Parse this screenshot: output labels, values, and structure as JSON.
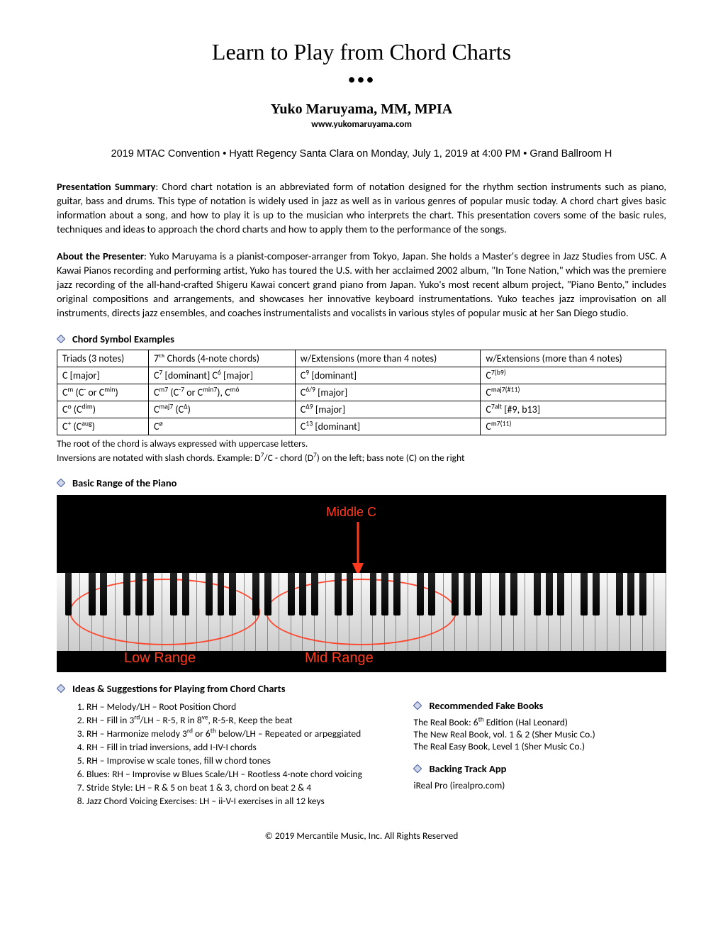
{
  "title": "Learn to Play from Chord Charts",
  "dots": "•••",
  "author": "Yuko Maruyama, MM, MPIA",
  "website": "www.yukomaruyama.com",
  "event": "2019 MTAC Convention  •  Hyatt Regency Santa Clara on Monday, July 1, 2019 at 4:00 PM  •  Grand Ballroom H",
  "summary_label": "Presentation Summary",
  "summary": ": Chord chart notation is an abbreviated form of notation designed for the rhythm section instruments such as piano, guitar, bass and drums. This type of notation is widely used in jazz as well as in various genres of popular music today. A chord chart gives basic information about a song, and how to play it is up to the musician who interprets the chart. This presentation covers some of the basic rules, techniques and ideas to approach the chord charts and how to apply them to the performance of the songs.",
  "about_label": "About the Presenter",
  "about": ": Yuko Maruyama is a pianist-composer-arranger from Tokyo, Japan. She holds a Master's degree in Jazz Studies from USC. A Kawai Pianos recording and performing artist, Yuko has toured the U.S. with her acclaimed 2002 album, \"In Tone Nation,\" which was the premiere jazz recording of the all-hand-crafted Shigeru Kawai concert grand piano from Japan. Yuko's most recent album project, \"Piano Bento,\" includes original compositions and arrangements, and showcases her innovative keyboard instrumentations. Yuko teaches jazz improvisation on all instruments, directs jazz ensembles, and coaches instrumentalists and vocalists in various styles of popular music at her San Diego studio.",
  "section_chord_examples": "Chord Symbol Examples",
  "table": {
    "headers": [
      "Triads (3 notes)",
      "7ᵗʰ Chords (4-note chords)",
      "w/Extensions (more than 4 notes)",
      "w/Extensions (more than 4 notes)"
    ]
  },
  "table_note1": "The root of the chord is always expressed with uppercase letters.",
  "section_range": "Basic Range of the Piano",
  "piano": {
    "middle_c": "Middle C",
    "low_range": "Low Range",
    "mid_range": "Mid Range",
    "white_keys": 52,
    "arrow_color": "#ff3b1f",
    "bg_color": "#000000"
  },
  "section_ideas": "Ideas & Suggestions for Playing from Chord Charts",
  "ideas": [
    "RH – Melody/LH – Root Position Chord",
    "",
    "",
    "RH – Fill in triad inversions, add I-IV-I chords",
    "RH – Improvise w scale tones, fill w chord tones",
    "Blues: RH – Improvise w Blues Scale/LH – Rootless 4-note chord voicing",
    "Stride Style: LH – R & 5 on beat 1 & 3, chord on beat 2 & 4",
    "Jazz Chord Voicing Exercises: LH – ii-V-I exercises in all 12 keys"
  ],
  "section_books": "Recommended Fake Books",
  "books": [
    "",
    "The New Real Book, vol. 1 & 2 (Sher Music Co.)",
    "The Real Easy Book, Level 1 (Sher Music Co.)"
  ],
  "section_app": "Backing Track App",
  "app": "iReal Pro (irealpro.com)",
  "footer": "© 2019 Mercantile Music, Inc.    All Rights Reserved",
  "colors": {
    "accent": "#5b6ea8",
    "diamond_fill": "#d0d7ea",
    "diamond_stroke": "#5b6ea8"
  }
}
